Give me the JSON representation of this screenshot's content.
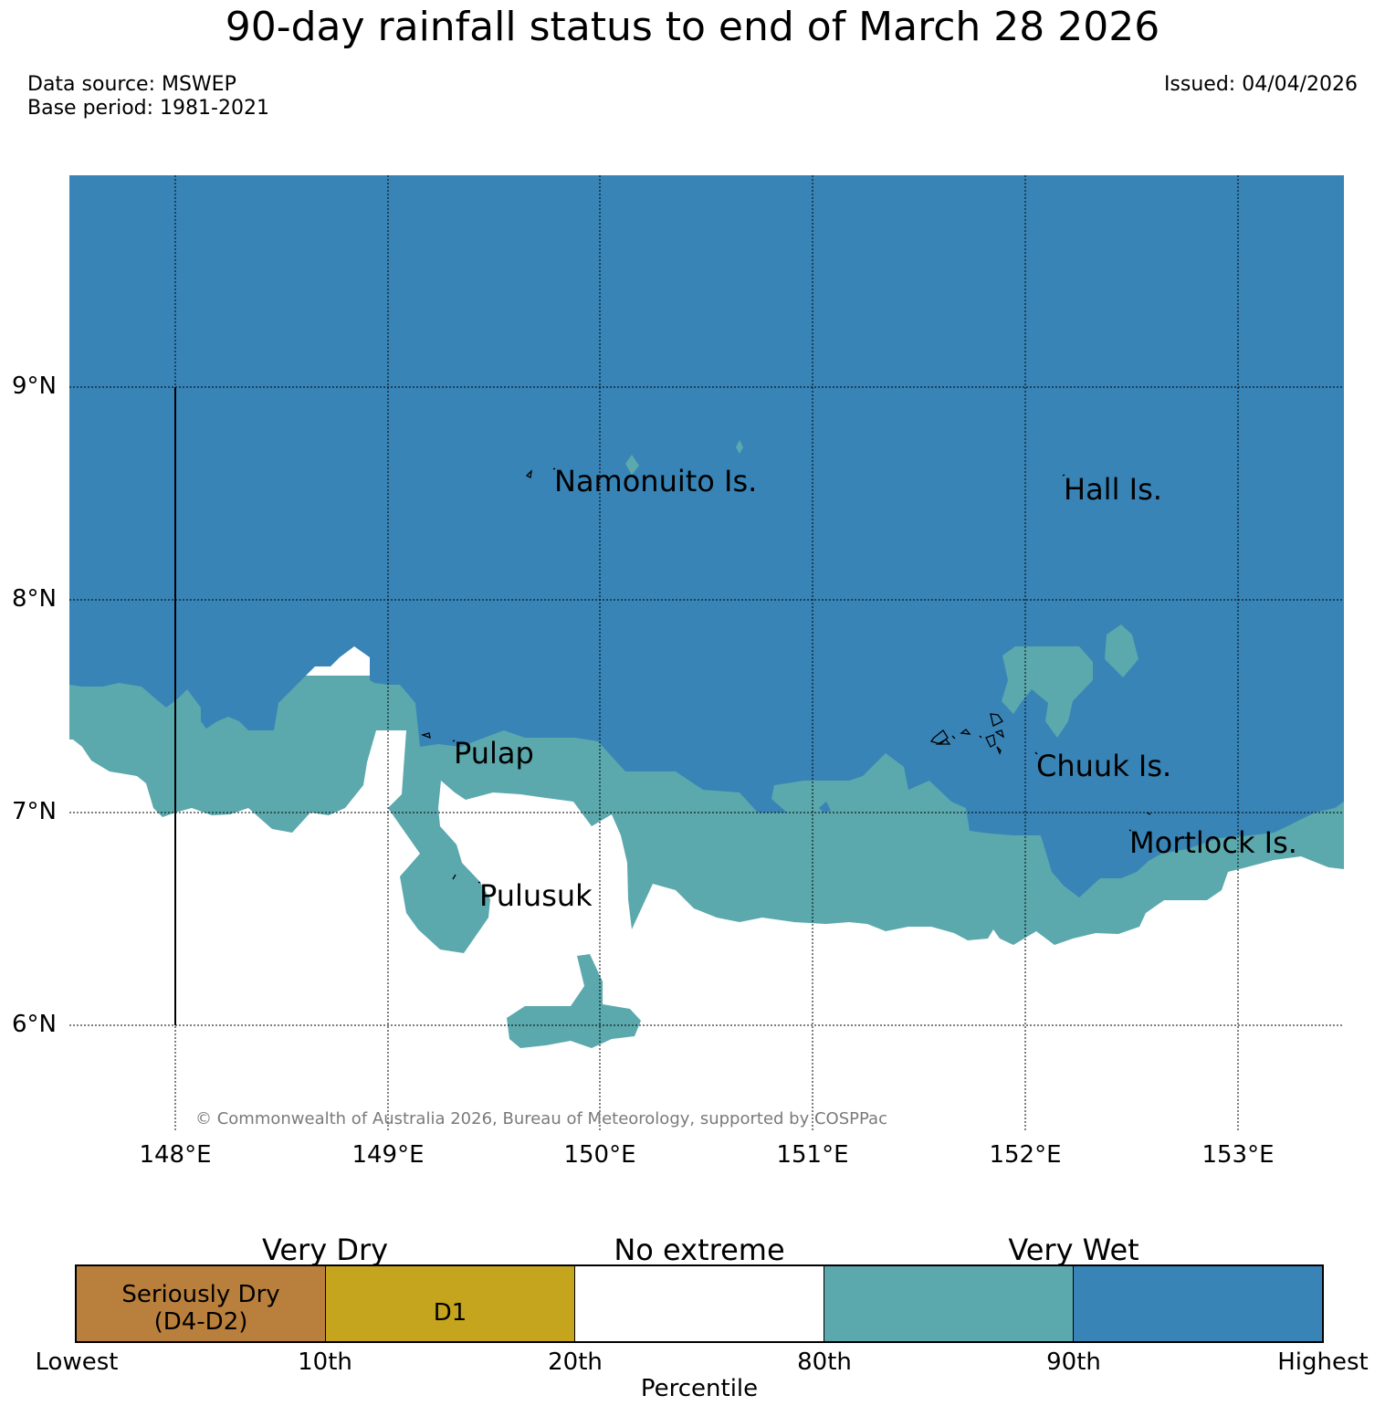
{
  "title": "90-day rainfall status to end of March 28 2026",
  "data_source": "Data source: MSWEP",
  "base_period": "Base period: 1981-2021",
  "issued": "Issued: 04/04/2026",
  "map": {
    "lat_labels": [
      "9°N",
      "8°N",
      "7°N",
      "6°N"
    ],
    "lon_labels": [
      "148°E",
      "149°E",
      "150°E",
      "151°E",
      "152°E",
      "153°E"
    ],
    "places": [
      "Namonuito Is.",
      "Hall Is.",
      "Pulap",
      "Chuuk Is.",
      "Mortlock Is.",
      "Pulusuk"
    ],
    "copyright": "© Commonwealth of Australia 2026, Bureau of Meteorology, supported by COSPPac",
    "colors": {
      "very_wet_highest": "#3884b7",
      "very_wet_80_90": "#5ba8ad",
      "no_extreme": "#ffffff",
      "d1": "#c5a41e",
      "seriously_dry": "#b97f3c"
    }
  },
  "legend": {
    "groups": [
      "Very Dry",
      "No extreme",
      "Very Wet"
    ],
    "segments": [
      {
        "label_line1": "Seriously Dry",
        "label_line2": "(D4-D2)",
        "color": "#b97f3c"
      },
      {
        "label_line1": "D1",
        "label_line2": "",
        "color": "#c5a41e"
      },
      {
        "label_line1": "",
        "label_line2": "",
        "color": "#ffffff"
      },
      {
        "label_line1": "",
        "label_line2": "",
        "color": "#5ba8ad"
      },
      {
        "label_line1": "",
        "label_line2": "",
        "color": "#3884b7"
      }
    ],
    "ticks": [
      "Lowest",
      "10th",
      "20th",
      "80th",
      "90th",
      "Highest"
    ],
    "axis_title": "Percentile"
  }
}
